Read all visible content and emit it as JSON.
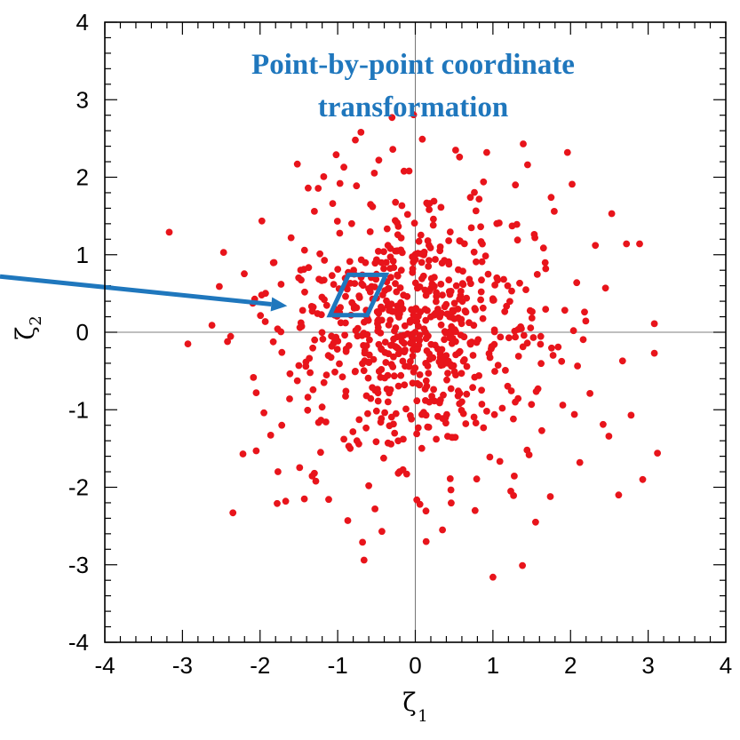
{
  "chart_data": {
    "type": "scatter",
    "xlabel": "ζ",
    "xlabel_sub": "1",
    "ylabel": "ζ",
    "ylabel_sub": "2",
    "xlim": [
      -4,
      4
    ],
    "ylim": [
      -4,
      4
    ],
    "x_ticks": [
      "-4",
      "-3",
      "-2",
      "-1",
      "0",
      "1",
      "2",
      "3",
      "4"
    ],
    "y_ticks": [
      "-4",
      "-3",
      "-2",
      "-1",
      "0",
      "1",
      "2",
      "3",
      "4"
    ],
    "grid": false,
    "zero_lines": true,
    "point_color": "#e8141b",
    "annotation": {
      "lines": [
        "Point-by-point coordinate",
        "transformation"
      ],
      "color": "#1f77bd"
    },
    "highlight_region": {
      "shape": "parallelogram",
      "color": "#1f77bd",
      "corners": [
        [
          -1.1,
          0.22
        ],
        [
          -0.62,
          0.22
        ],
        [
          -0.38,
          0.74
        ],
        [
          -0.86,
          0.74
        ]
      ]
    },
    "arrow": {
      "color": "#1f77bd",
      "from": [
        -5.4,
        0.72
      ],
      "to": [
        -1.65,
        0.34
      ]
    },
    "points": [
      [
        -3.17,
        1.29
      ],
      [
        -2.93,
        -0.15
      ],
      [
        -2.62,
        0.09
      ],
      [
        -2.47,
        1.03
      ],
      [
        -2.35,
        -2.33
      ],
      [
        -2.22,
        -1.57
      ],
      [
        -2.05,
        -1.53
      ],
      [
        -1.98,
        0.48
      ],
      [
        -1.78,
        -2.21
      ],
      [
        -1.72,
        -1.2
      ],
      [
        -1.67,
        -2.18
      ],
      [
        -1.62,
        -0.86
      ],
      [
        -1.52,
        2.17
      ],
      [
        -1.5,
        -0.43
      ],
      [
        -1.43,
        -2.15
      ],
      [
        -1.38,
        1.86
      ],
      [
        -1.3,
        1.56
      ],
      [
        -1.22,
        -1.55
      ],
      [
        -1.12,
        -0.3
      ],
      [
        -1.08,
        -0.05
      ],
      [
        -0.97,
        1.92
      ],
      [
        -0.92,
        -1.38
      ],
      [
        -0.87,
        -2.43
      ],
      [
        -0.82,
        1.4
      ],
      [
        -0.74,
        0.05
      ],
      [
        -0.7,
        2.58
      ],
      [
        -0.68,
        -2.71
      ],
      [
        -0.66,
        -2.94
      ],
      [
        -0.63,
        -0.82
      ],
      [
        -0.58,
        0.52
      ],
      [
        -0.55,
        1.62
      ],
      [
        -0.52,
        -2.28
      ],
      [
        -0.47,
        2.22
      ],
      [
        -0.43,
        -2.57
      ],
      [
        -0.38,
        -0.39
      ],
      [
        -0.32,
        1.08
      ],
      [
        -0.29,
        2.36
      ],
      [
        -0.22,
        -1.82
      ],
      [
        -0.18,
        0.8
      ],
      [
        -0.14,
        -0.68
      ],
      [
        -0.1,
        1.52
      ],
      [
        -0.08,
        2.08
      ],
      [
        -0.05,
        -1.12
      ],
      [
        0.02,
        0.14
      ],
      [
        0.06,
        -2.22
      ],
      [
        0.09,
        2.49
      ],
      [
        0.11,
        1.0
      ],
      [
        0.14,
        -2.7
      ],
      [
        0.18,
        -0.28
      ],
      [
        0.24,
        1.69
      ],
      [
        0.27,
        -1.38
      ],
      [
        0.33,
        0.62
      ],
      [
        0.36,
        -0.81
      ],
      [
        0.43,
        1.18
      ],
      [
        0.45,
        -1.89
      ],
      [
        0.52,
        -0.12
      ],
      [
        0.57,
        2.26
      ],
      [
        0.62,
        -1.05
      ],
      [
        0.66,
        0.44
      ],
      [
        0.71,
        1.74
      ],
      [
        0.77,
        -2.3
      ],
      [
        0.82,
        -0.56
      ],
      [
        0.86,
        0.91
      ],
      [
        0.92,
        2.32
      ],
      [
        0.96,
        -1.61
      ],
      [
        1.02,
        0.03
      ],
      [
        1.08,
        1.41
      ],
      [
        1.12,
        -0.98
      ],
      [
        1.19,
        0.6
      ],
      [
        1.23,
        -2.05
      ],
      [
        1.29,
        1.9
      ],
      [
        1.33,
        -0.31
      ],
      [
        1.38,
        -3.01
      ],
      [
        1.39,
        2.43
      ],
      [
        1.44,
        -1.52
      ],
      [
        1.48,
        0.28
      ],
      [
        1.54,
        1.22
      ],
      [
        1.58,
        -0.73
      ],
      [
        1.63,
        -1.27
      ],
      [
        1.68,
        0.82
      ],
      [
        1.74,
        -2.12
      ],
      [
        1.79,
        1.56
      ],
      [
        1.84,
        -0.19
      ],
      [
        1.9,
        -0.94
      ],
      [
        1.96,
        2.32
      ],
      [
        2.02,
        1.91
      ],
      [
        2.05,
        -1.06
      ],
      [
        2.08,
        0.64
      ],
      [
        2.12,
        -1.68
      ],
      [
        2.18,
        0.26
      ],
      [
        2.25,
        -0.79
      ],
      [
        2.32,
        1.12
      ],
      [
        2.42,
        -1.19
      ],
      [
        2.53,
        1.53
      ],
      [
        2.62,
        -2.1
      ],
      [
        2.67,
        -0.37
      ],
      [
        2.72,
        1.14
      ],
      [
        2.78,
        -1.07
      ],
      [
        2.89,
        1.14
      ],
      [
        2.93,
        -1.9
      ],
      [
        3.08,
        0.11
      ],
      [
        3.08,
        -0.27
      ],
      [
        3.12,
        -1.56
      ],
      [
        -1.02,
        2.29
      ],
      [
        0.52,
        2.35
      ],
      [
        1.0,
        -3.16
      ],
      [
        -1.95,
        -1.04
      ],
      [
        -2.42,
        -0.12
      ],
      [
        -1.82,
        0.9
      ],
      [
        -1.3,
        -1.82
      ],
      [
        -0.3,
        2.77
      ],
      [
        -0.92,
        2.13
      ],
      [
        1.55,
        -2.45
      ],
      [
        2.45,
        0.57
      ],
      [
        -2.05,
        -0.78
      ],
      [
        -1.6,
        1.22
      ],
      [
        0.35,
        -2.55
      ],
      [
        1.75,
        1.74
      ],
      [
        -0.6,
        -1.98
      ],
      [
        0.0,
        0.0
      ]
    ],
    "cloud_seed": 20240519,
    "cloud_count": 640,
    "cloud_sigma": 0.8
  }
}
